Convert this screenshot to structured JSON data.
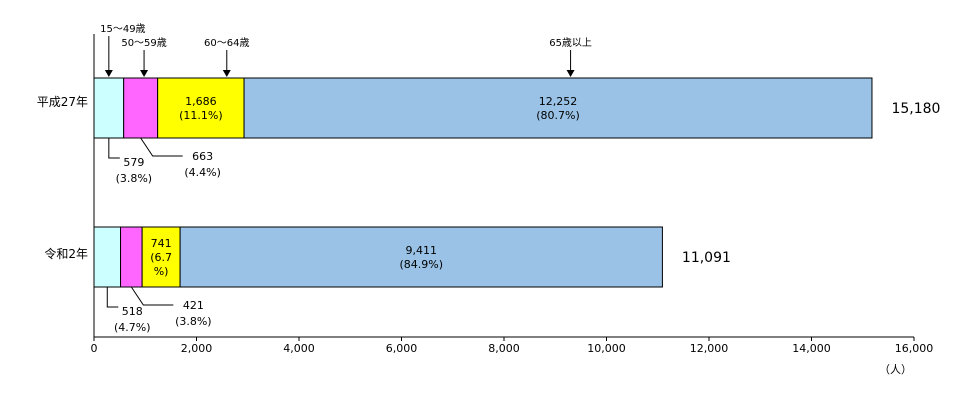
{
  "chart_data": {
    "type": "bar",
    "orientation": "horizontal",
    "stacked": true,
    "categories": [
      "平成27年",
      "令和2年"
    ],
    "series": [
      {
        "name": "15～49歳",
        "color": "#ccffff",
        "values": [
          579,
          518
        ],
        "labels": [
          "579\n(3.8%)",
          "518\n(4.7%)"
        ],
        "label_position": [
          "callout",
          "callout"
        ]
      },
      {
        "name": "50～59歳",
        "color": "#ff66ff",
        "values": [
          663,
          421
        ],
        "labels": [
          "663\n(4.4%)",
          "421\n(3.8%)"
        ],
        "label_position": [
          "callout",
          "callout"
        ]
      },
      {
        "name": "60～64歳",
        "color": "#ffff00",
        "values": [
          1686,
          741
        ],
        "labels": [
          "1,686\n(11.1%)",
          "741\n(6.7\n%)"
        ],
        "label_position": [
          "inside",
          "inside"
        ]
      },
      {
        "name": "65歳以上",
        "color": "#99c2e6",
        "values": [
          12252,
          9411
        ],
        "labels": [
          "12,252\n(80.7%)",
          "9,411\n(84.9%)"
        ],
        "label_position": [
          "inside",
          "inside"
        ]
      }
    ],
    "totals": [
      "15,180",
      "11,091"
    ],
    "legend_annotations": [
      "15～49歳",
      "50～59歳",
      "60～64歳",
      "65歳以上"
    ],
    "x_ticks": [
      "0",
      "2,000",
      "4,000",
      "6,000",
      "8,000",
      "10,000",
      "12,000",
      "14,000",
      "16,000"
    ],
    "xlim": [
      0,
      16000
    ],
    "unit_label": "（人）",
    "grid": false
  }
}
